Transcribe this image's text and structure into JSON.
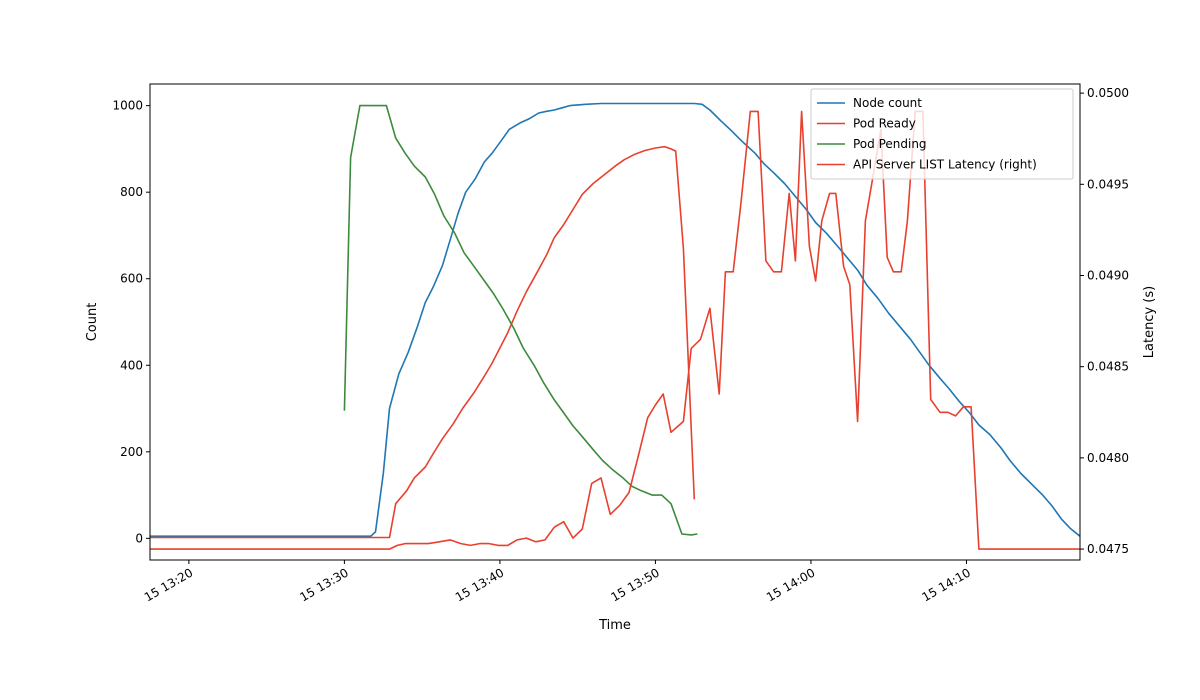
{
  "chart_data": {
    "type": "line",
    "xlabel": "Time",
    "ylabel_left": "Count",
    "ylabel_right": "Latency (s)",
    "xlim": [
      0,
      59.8
    ],
    "ylim_left": [
      -50,
      1050
    ],
    "ylim_right": [
      0.04744,
      0.05005
    ],
    "x_ticks": [
      {
        "pos": 2.5,
        "label": "15 13:20"
      },
      {
        "pos": 12.5,
        "label": "15 13:30"
      },
      {
        "pos": 22.5,
        "label": "15 13:40"
      },
      {
        "pos": 32.5,
        "label": "15 13:50"
      },
      {
        "pos": 42.5,
        "label": "15 14:00"
      },
      {
        "pos": 52.5,
        "label": "15 14:10"
      }
    ],
    "y_ticks_left": [
      0,
      200,
      400,
      600,
      800,
      1000
    ],
    "y_ticks_right": [
      "0.0475",
      "0.0480",
      "0.0485",
      "0.0490",
      "0.0495",
      "0.0500"
    ],
    "y_tick_values_right": [
      0.0475,
      0.048,
      0.0485,
      0.049,
      0.0495,
      0.05
    ],
    "legend_position": "top-right",
    "legend": [
      "Node count",
      "Pod Ready",
      "Pod Pending",
      "API Server LIST Latency (right)"
    ],
    "colors": {
      "blue": "#1f77b4",
      "red": "#e8402f",
      "green": "#3d8a3d"
    },
    "series": [
      {
        "name": "Node count",
        "axis": "left",
        "color": "#1f77b4",
        "x": [
          0,
          14.2,
          14.5,
          15.0,
          15.4,
          16.0,
          16.6,
          17.2,
          17.7,
          18.2,
          18.8,
          19.3,
          19.8,
          20.3,
          20.9,
          21.5,
          22.0,
          22.6,
          23.1,
          23.8,
          24.4,
          25.0,
          25.5,
          26.0,
          26.5,
          27.0,
          28.0,
          29.0,
          30.0,
          31.0,
          32.0,
          33.0,
          34.0,
          35.0,
          35.5,
          36.0,
          36.7,
          37.3,
          38.0,
          38.9,
          39.5,
          40.1,
          40.8,
          41.5,
          42.2,
          42.8,
          43.5,
          44.1,
          44.8,
          45.5,
          46.1,
          46.8,
          47.5,
          48.2,
          48.9,
          49.5,
          50.1,
          50.8,
          51.4,
          52.0,
          52.7,
          53.3,
          54.0,
          54.7,
          55.3,
          56.0,
          56.7,
          57.4,
          58.0,
          58.6,
          59.2,
          59.8
        ],
        "values": [
          5,
          5,
          15,
          150,
          300,
          380,
          430,
          490,
          545,
          580,
          630,
          690,
          750,
          800,
          830,
          870,
          890,
          920,
          945,
          960,
          970,
          983,
          987,
          990,
          995,
          1000,
          1003,
          1005,
          1005,
          1005,
          1005,
          1005,
          1005,
          1005,
          1003,
          990,
          965,
          945,
          920,
          890,
          865,
          845,
          820,
          790,
          760,
          730,
          705,
          680,
          650,
          620,
          585,
          555,
          520,
          490,
          460,
          430,
          400,
          370,
          345,
          318,
          290,
          262,
          240,
          210,
          180,
          150,
          125,
          100,
          75,
          45,
          22,
          5
        ]
      },
      {
        "name": "Pod Ready",
        "axis": "left",
        "color": "#e8402f",
        "x": [
          0,
          15.4,
          15.8,
          16.5,
          17.0,
          17.7,
          18.2,
          18.8,
          19.5,
          20.1,
          20.8,
          21.5,
          22.0,
          22.5,
          23.0,
          23.6,
          24.2,
          24.9,
          25.5,
          26.0,
          26.6,
          27.2,
          27.8,
          28.5,
          29.2,
          29.9,
          30.5,
          31.2,
          31.8,
          32.5,
          33.1,
          33.5,
          33.8,
          34.3,
          35.0
        ],
        "values": [
          2,
          2,
          80,
          110,
          140,
          165,
          195,
          230,
          265,
          300,
          335,
          375,
          405,
          440,
          475,
          525,
          570,
          615,
          655,
          695,
          725,
          760,
          795,
          820,
          840,
          860,
          875,
          888,
          896,
          902,
          905,
          900,
          895,
          670,
          90
        ]
      },
      {
        "name": "Pod Pending",
        "axis": "left",
        "color": "#3d8a3d",
        "x": [
          12.5,
          12.9,
          13.5,
          15.2,
          15.8,
          16.4,
          17.0,
          17.7,
          18.3,
          18.9,
          19.6,
          20.2,
          20.8,
          21.5,
          22.1,
          22.7,
          23.4,
          24.0,
          24.7,
          25.3,
          26.0,
          26.6,
          27.2,
          27.8,
          28.5,
          29.1,
          29.7,
          30.4,
          31.0,
          31.6,
          32.3,
          32.9,
          33.5,
          34.2,
          34.8,
          35.2
        ],
        "values": [
          295,
          880,
          1000,
          1000,
          925,
          890,
          860,
          835,
          795,
          745,
          705,
          660,
          630,
          595,
          565,
          530,
          485,
          440,
          400,
          360,
          320,
          290,
          260,
          235,
          205,
          180,
          160,
          140,
          120,
          110,
          100,
          100,
          80,
          10,
          8,
          10
        ]
      },
      {
        "name": "API Server LIST Latency (right)",
        "axis": "right",
        "color": "#e8402f",
        "x": [
          0,
          14.8,
          15.4,
          15.9,
          16.4,
          17.2,
          17.9,
          18.6,
          19.3,
          20.0,
          20.6,
          21.2,
          21.8,
          22.4,
          23.0,
          23.6,
          24.2,
          24.8,
          25.4,
          26.0,
          26.6,
          27.2,
          27.8,
          28.4,
          29.0,
          29.6,
          30.2,
          30.8,
          31.4,
          32.0,
          32.5,
          33.0,
          33.5,
          33.9,
          34.3,
          34.8,
          35.4,
          36.0,
          36.6,
          37.0,
          37.5,
          38.0,
          38.6,
          39.1,
          39.6,
          40.1,
          40.6,
          41.1,
          41.5,
          41.9,
          42.4,
          42.8,
          43.2,
          43.7,
          44.1,
          44.6,
          45.0,
          45.5,
          46.0,
          46.5,
          47.0,
          47.4,
          47.8,
          48.3,
          48.7,
          49.2,
          49.7,
          50.2,
          50.8,
          51.3,
          51.8,
          52.3,
          52.8,
          53.3,
          53.8,
          54.3,
          54.8,
          55.4,
          55.9,
          56.4,
          56.8,
          57.3,
          58.0,
          58.6,
          59.2,
          59.8
        ],
        "values": [
          0.0475,
          0.0475,
          0.0475,
          0.04752,
          0.04753,
          0.04753,
          0.04753,
          0.04754,
          0.04755,
          0.04753,
          0.04752,
          0.04753,
          0.04753,
          0.04752,
          0.04752,
          0.04755,
          0.04756,
          0.04754,
          0.04755,
          0.04762,
          0.04765,
          0.04756,
          0.04761,
          0.04786,
          0.04789,
          0.04769,
          0.04774,
          0.04781,
          0.04801,
          0.04822,
          0.04829,
          0.04835,
          0.04814,
          0.04817,
          0.0482,
          0.0486,
          0.04865,
          0.04882,
          0.04835,
          0.04902,
          0.04902,
          0.0494,
          0.0499,
          0.0499,
          0.04908,
          0.04902,
          0.04902,
          0.04945,
          0.04908,
          0.0499,
          0.04916,
          0.04897,
          0.0493,
          0.04945,
          0.04945,
          0.04905,
          0.04895,
          0.0482,
          0.0493,
          0.04955,
          0.0498,
          0.0491,
          0.04902,
          0.04902,
          0.0493,
          0.0499,
          0.0499,
          0.04832,
          0.04825,
          0.04825,
          0.04823,
          0.04828,
          0.04828,
          0.0475,
          0.0475,
          0.0475,
          0.0475,
          0.0475,
          0.0475,
          0.0475,
          0.0475,
          0.0475,
          0.0475,
          0.0475,
          0.0475,
          0.0475
        ]
      }
    ]
  }
}
